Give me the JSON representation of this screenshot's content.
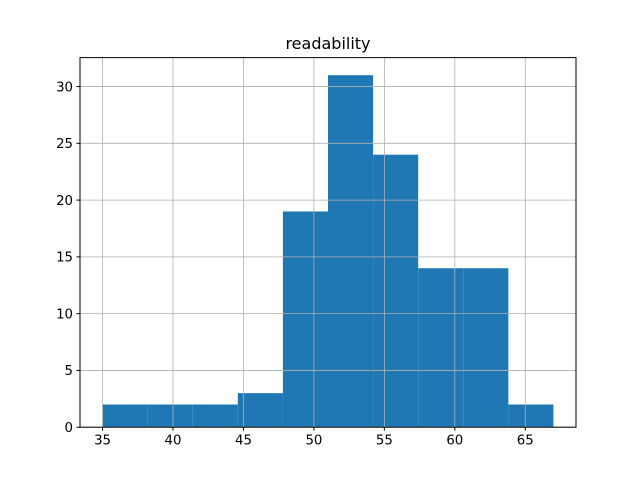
{
  "chart_data": {
    "type": "bar",
    "variant": "histogram",
    "title": "readability",
    "bin_edges": [
      35.0,
      38.2,
      41.4,
      44.6,
      47.8,
      51.0,
      54.2,
      57.4,
      60.6,
      63.8,
      67.0
    ],
    "counts": [
      2,
      2,
      2,
      3,
      19,
      31,
      24,
      14,
      14,
      2
    ],
    "xticks": [
      35,
      40,
      45,
      50,
      55,
      60,
      65
    ],
    "yticks": [
      0,
      5,
      10,
      15,
      20,
      25,
      30
    ],
    "xlim": [
      33.4,
      68.6
    ],
    "ylim": [
      0,
      32.55
    ],
    "xlabel": "",
    "ylabel": "",
    "grid": true,
    "grid_above_bars": true,
    "legend": false,
    "bar_color": "#1f77b4",
    "grid_color": "#b0b0b0",
    "spine_color": "#000000",
    "text_color": "#000000",
    "background_color": "#ffffff"
  }
}
